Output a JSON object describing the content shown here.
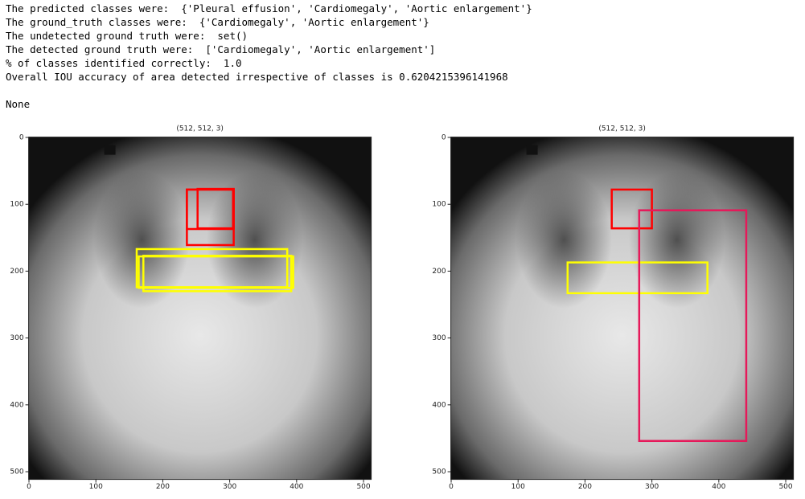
{
  "console": {
    "lines": [
      "The predicted classes were:  {'Pleural effusion', 'Cardiomegaly', 'Aortic enlargement'}",
      "The ground_truth classes were:  {'Cardiomegaly', 'Aortic enlargement'}",
      "The undetected ground truth were:  set()",
      "The detected ground truth were:  ['Cardiomegaly', 'Aortic enlargement']",
      "% of classes identified correctly:  1.0",
      "Overall IOU accuracy of area detected irrespective of classes is 0.6204215396141968"
    ],
    "result": "None"
  },
  "chart_data": [
    {
      "type": "image",
      "title": "(512, 512, 3)",
      "xlim": [
        -0.5,
        511.5
      ],
      "ylim": [
        511.5,
        -0.5
      ],
      "xticks": [
        0,
        100,
        200,
        300,
        400,
        500
      ],
      "yticks": [
        0,
        100,
        200,
        300,
        400,
        500
      ],
      "boxes": [
        {
          "color": "#ff0000",
          "x0": 236,
          "y0": 78,
          "x1": 306,
          "y1": 161
        },
        {
          "color": "#ff0000",
          "x0": 252,
          "y0": 77,
          "x1": 306,
          "y1": 136
        },
        {
          "color": "#ff0000",
          "x0": 236,
          "y0": 78,
          "x1": 305,
          "y1": 137
        },
        {
          "color": "#ffff00",
          "x0": 161,
          "y0": 167,
          "x1": 386,
          "y1": 224
        },
        {
          "color": "#ffff00",
          "x0": 164,
          "y0": 178,
          "x1": 395,
          "y1": 225
        },
        {
          "color": "#ffff00",
          "x0": 171,
          "y0": 177,
          "x1": 392,
          "y1": 230
        }
      ]
    },
    {
      "type": "image",
      "title": "(512, 512, 3)",
      "xlim": [
        -0.5,
        511.5
      ],
      "ylim": [
        511.5,
        -0.5
      ],
      "xticks": [
        0,
        100,
        200,
        300,
        400,
        500
      ],
      "yticks": [
        0,
        100,
        200,
        300,
        400,
        500
      ],
      "boxes": [
        {
          "color": "#ff0000",
          "x0": 240,
          "y0": 78,
          "x1": 300,
          "y1": 136
        },
        {
          "color": "#ffff00",
          "x0": 174,
          "y0": 187,
          "x1": 383,
          "y1": 233
        },
        {
          "color": "#e6195a",
          "x0": 281,
          "y0": 109,
          "x1": 441,
          "y1": 454
        }
      ]
    }
  ]
}
